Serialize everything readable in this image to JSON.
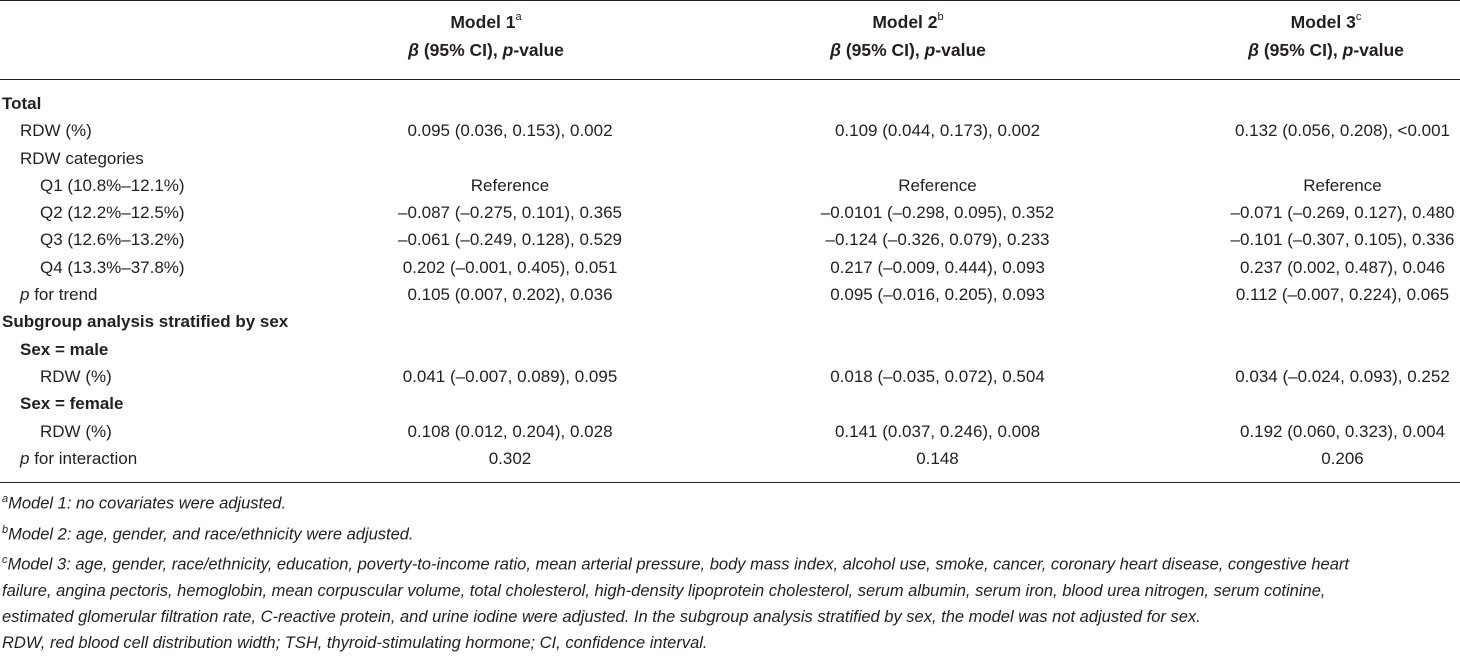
{
  "header": {
    "col1_title": "Model 1",
    "col1_sup": "a",
    "col2_title": "Model 2",
    "col2_sup": "b",
    "col3_title": "Model 3",
    "col3_sup": "c",
    "sub_beta": "β",
    "sub_ci": " (95% CI), ",
    "sub_p": "p",
    "sub_value": "-value"
  },
  "rows": {
    "total": {
      "label": "Total"
    },
    "rdw": {
      "label": "RDW (%)",
      "m1": "0.095 (0.036, 0.153), 0.002",
      "m2": "0.109 (0.044, 0.173), 0.002",
      "m3": "0.132 (0.056, 0.208), <0.001"
    },
    "rdw_cat": {
      "label": "RDW categories"
    },
    "q1": {
      "label": "Q1 (10.8%–12.1%)",
      "m1": "Reference",
      "m2": "Reference",
      "m3": "Reference"
    },
    "q2": {
      "label": "Q2 (12.2%–12.5%)",
      "m1": "–0.087 (–0.275, 0.101), 0.365",
      "m2": "–0.0101 (–0.298, 0.095), 0.352",
      "m3": "–0.071 (–0.269, 0.127), 0.480"
    },
    "q3": {
      "label": "Q3 (12.6%–13.2%)",
      "m1": "–0.061 (–0.249, 0.128), 0.529",
      "m2": "–0.124 (–0.326, 0.079), 0.233",
      "m3": "–0.101 (–0.307, 0.105), 0.336"
    },
    "q4": {
      "label": "Q4 (13.3%–37.8%)",
      "m1": "0.202 (–0.001, 0.405), 0.051",
      "m2": "0.217 (–0.009, 0.444), 0.093",
      "m3": "0.237 (0.002, 0.487), 0.046"
    },
    "trend": {
      "label_p": "p",
      "label_rest": " for trend",
      "m1": "0.105 (0.007, 0.202), 0.036",
      "m2": "0.095 (–0.016, 0.205), 0.093",
      "m3": "0.112 (–0.007, 0.224), 0.065"
    },
    "subgroup": {
      "label": "Subgroup analysis stratified by sex"
    },
    "male": {
      "label": "Sex = male"
    },
    "male_rdw": {
      "label": "RDW (%)",
      "m1": "0.041 (–0.007, 0.089), 0.095",
      "m2": "0.018 (–0.035, 0.072), 0.504",
      "m3": "0.034 (–0.024, 0.093), 0.252"
    },
    "female": {
      "label": "Sex = female"
    },
    "female_rdw": {
      "label": "RDW (%)",
      "m1": "0.108 (0.012, 0.204), 0.028",
      "m2": "0.141 (0.037, 0.246), 0.008",
      "m3": "0.192 (0.060, 0.323), 0.004"
    },
    "interaction": {
      "label_p": "p",
      "label_rest": " for interaction",
      "m1": "0.302",
      "m2": "0.148",
      "m3": "0.206"
    }
  },
  "notes": {
    "a_sup": "a",
    "a_text": "Model 1: no covariates were adjusted.",
    "b_sup": "b",
    "b_text": "Model 2: age, gender, and race/ethnicity were adjusted.",
    "c_sup": "c",
    "c_line1": "Model 3: age, gender, race/ethnicity, education, poverty-to-income ratio, mean arterial pressure, body mass index, alcohol use, smoke, cancer, coronary heart disease, congestive heart",
    "c_line2": "failure, angina pectoris, hemoglobin, mean corpuscular volume, total cholesterol, high-density lipoprotein cholesterol, serum albumin, serum iron, blood urea nitrogen, serum cotinine,",
    "c_line3": "estimated glomerular filtration rate, C-reactive protein, and urine iodine were adjusted. In the subgroup analysis stratified by sex, the model was not adjusted for sex.",
    "abbrev": "RDW, red blood cell distribution width; TSH, thyroid-stimulating hormone; CI, confidence interval."
  }
}
